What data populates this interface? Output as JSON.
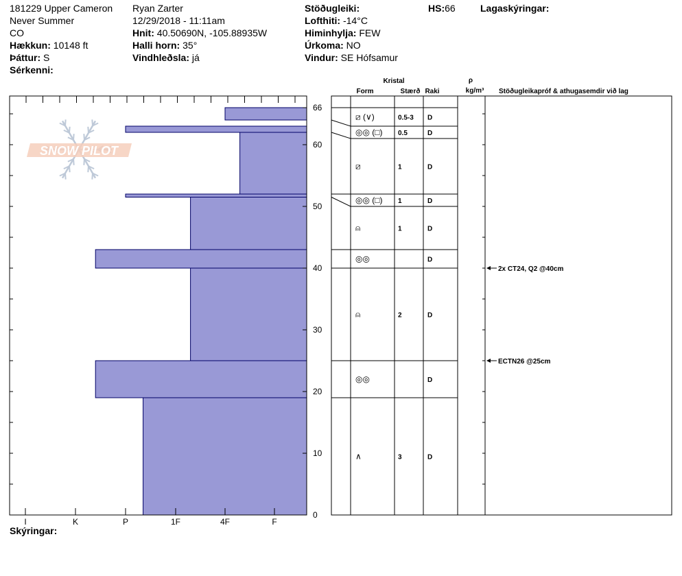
{
  "header": {
    "col1": [
      {
        "label": "",
        "value": "181229 Upper Cameron"
      },
      {
        "label": "",
        "value": "Never Summer"
      },
      {
        "label": "",
        "value": "CO"
      },
      {
        "label": "Hækkun:",
        "value": "10148 ft"
      },
      {
        "label": "Þáttur:",
        "value": "S"
      },
      {
        "label": "Sérkenni:",
        "value": ""
      }
    ],
    "col2": [
      {
        "label": "",
        "value": "Ryan Zarter"
      },
      {
        "label": "",
        "value": "12/29/2018 - 11:11am"
      },
      {
        "label": "Hnit:",
        "value": "40.50690N, -105.88935W"
      },
      {
        "label": "Halli horn:",
        "value": "35°"
      },
      {
        "label": "Vindhleðsla:",
        "value": "já"
      }
    ],
    "col3": [
      {
        "label": "Stöðugleiki:",
        "value": ""
      },
      {
        "label": "Lofthiti:",
        "value": "-14°C"
      },
      {
        "label": "Himinhylja:",
        "value": "FEW"
      },
      {
        "label": "Úrkoma:",
        "value": "NO"
      },
      {
        "label": "Vindur:",
        "value": "SE Hófsamur"
      }
    ],
    "hs_label": "HS:",
    "hs_value": "66",
    "lag_label": "Lagaskýringar:"
  },
  "footer_label": "Skýringar:",
  "table_header": {
    "kristal": "Kristal",
    "form": "Form",
    "staerd": "Stærð",
    "raki": "Raki",
    "rho": "ρ",
    "rho_unit": "kg/m³",
    "comments": "Stöðugleikapróf & athugasemdir við lag"
  },
  "chart_data": {
    "type": "bar",
    "orientation": "horizontal",
    "title": "",
    "xlabel": "",
    "ylabel": "",
    "x_categories": [
      "I",
      "K",
      "P",
      "1F",
      "4F",
      "F"
    ],
    "hardness_scale_order": [
      "F",
      "4F",
      "1F",
      "P",
      "K",
      "I"
    ],
    "ylim": [
      0,
      66
    ],
    "y_ticks": [
      0,
      10,
      20,
      30,
      40,
      50,
      60,
      66
    ],
    "layers": [
      {
        "bottom": 64,
        "top": 66,
        "hardness": 1.0
      },
      {
        "bottom": 62,
        "top": 63,
        "hardness": 3.0
      },
      {
        "bottom": 52,
        "top": 62,
        "hardness": 0.7
      },
      {
        "bottom": 51.5,
        "top": 52,
        "hardness": 3.0
      },
      {
        "bottom": 43,
        "top": 51.5,
        "hardness": 1.7
      },
      {
        "bottom": 40,
        "top": 43,
        "hardness": 3.6
      },
      {
        "bottom": 25,
        "top": 40,
        "hardness": 1.7
      },
      {
        "bottom": 19,
        "top": 25,
        "hardness": 3.6
      },
      {
        "bottom": 0,
        "top": 19,
        "hardness": 2.65
      }
    ],
    "table_rows": [
      {
        "top": 65,
        "bottom": 63,
        "form": "⧄ (∨)",
        "size": "0.5-3",
        "moisture": "D"
      },
      {
        "top": 63,
        "bottom": 61,
        "form": "◎◎ (□)",
        "size": "0.5",
        "moisture": "D"
      },
      {
        "top": 61,
        "bottom": 52,
        "form": "⧄",
        "size": "1",
        "moisture": "D"
      },
      {
        "top": 52,
        "bottom": 50,
        "form": "◎◎ (□)",
        "size": "1",
        "moisture": "D"
      },
      {
        "top": 50,
        "bottom": 43,
        "form": "⍝",
        "size": "1",
        "moisture": "D"
      },
      {
        "top": 43,
        "bottom": 40,
        "form": "◎◎",
        "size": "",
        "moisture": "D"
      },
      {
        "top": 40,
        "bottom": 25,
        "form": "⍝",
        "size": "2",
        "moisture": "D"
      },
      {
        "top": 25,
        "bottom": 19,
        "form": "◎◎",
        "size": "",
        "moisture": "D"
      },
      {
        "top": 19,
        "bottom": 0,
        "form": "∧",
        "size": "3",
        "moisture": "D"
      }
    ],
    "connectors": [
      {
        "layer_top": 66,
        "table_top": 65
      },
      {
        "layer_top": 64,
        "table_top": 63
      },
      {
        "layer_top": 62,
        "table_top": 61
      },
      {
        "layer_top": 52,
        "table_top": 52
      },
      {
        "layer_top": 51.5,
        "table_top": 50
      },
      {
        "layer_top": 43,
        "table_top": 43
      },
      {
        "layer_top": 40,
        "table_top": 40
      },
      {
        "layer_top": 25,
        "table_top": 25
      },
      {
        "layer_top": 19,
        "table_top": 19
      }
    ],
    "stability_tests": [
      {
        "depth": 40,
        "text": "2x CT24, Q2 @40cm"
      },
      {
        "depth": 25,
        "text": "ECTN26 @25cm"
      }
    ],
    "bar_color": "#9999d6",
    "bar_stroke": "#000066"
  },
  "logo": {
    "text": "SNOW PILOT",
    "color": "#f4c9b5",
    "snowflake_color": "#b8c4d4"
  }
}
